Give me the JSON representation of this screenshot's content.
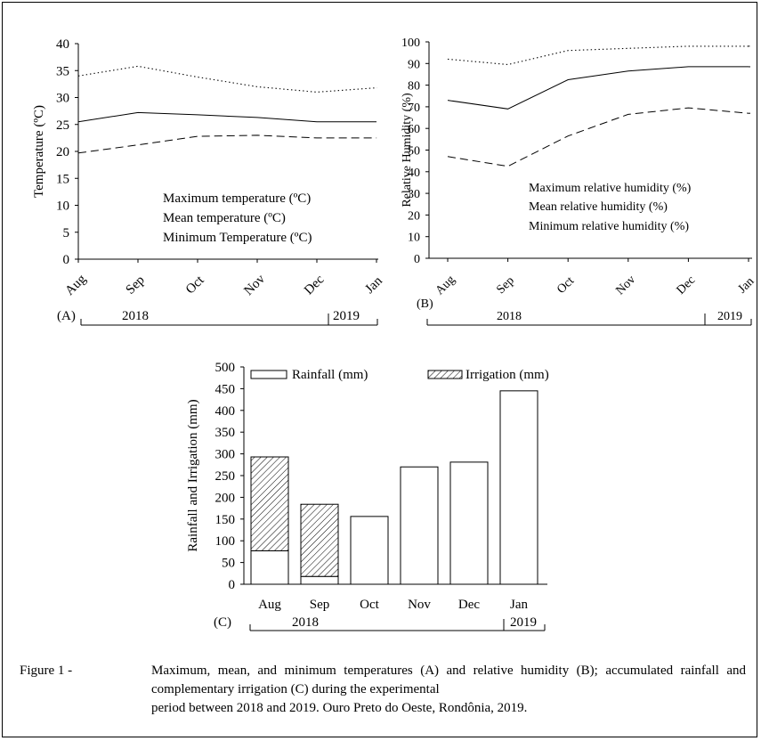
{
  "chart_data": [
    {
      "id": "A",
      "type": "line",
      "panel_label": "(A)",
      "ylabel": "Temperature (ºC)",
      "ylim": [
        0,
        40
      ],
      "yticks": [
        0,
        5,
        10,
        15,
        20,
        25,
        30,
        35,
        40
      ],
      "categories": [
        "Aug",
        "Sep",
        "Oct",
        "Nov",
        "Dec",
        "Jan"
      ],
      "years": [
        "2018",
        "2019"
      ],
      "series": [
        {
          "name": "Maximum temperature (ºC)",
          "style": "dotted",
          "values": [
            34,
            35.8,
            33.8,
            32,
            31,
            31.8
          ]
        },
        {
          "name": "Mean temperature (ºC)",
          "style": "solid",
          "values": [
            25.5,
            27.2,
            26.8,
            26.3,
            25.5,
            25.5
          ]
        },
        {
          "name": "Minimum Temperature (ºC)",
          "style": "dashed",
          "values": [
            19.7,
            21.2,
            22.8,
            23,
            22.5,
            22.5
          ]
        }
      ]
    },
    {
      "id": "B",
      "type": "line",
      "panel_label": "(B)",
      "ylabel": "Relative  Humidity (%)",
      "ylim": [
        0,
        100
      ],
      "yticks": [
        0,
        10,
        20,
        30,
        40,
        50,
        60,
        70,
        80,
        90,
        100
      ],
      "categories": [
        "Aug",
        "Sep",
        "Oct",
        "Nov",
        "Dec",
        "Jan"
      ],
      "years": [
        "2018",
        "2019"
      ],
      "series": [
        {
          "name": "Maximum relative humidity (%)",
          "style": "dotted",
          "values": [
            92,
            89.5,
            96,
            97,
            98,
            98
          ]
        },
        {
          "name": "Mean relative humidity (%)",
          "style": "solid",
          "values": [
            73,
            69,
            82.5,
            86.5,
            88.5,
            88.5
          ]
        },
        {
          "name": "Minimum relative humidity (%)",
          "style": "dashed",
          "values": [
            47,
            42.5,
            56.5,
            66.5,
            69.5,
            67
          ]
        }
      ]
    },
    {
      "id": "C",
      "type": "bar",
      "stacked": true,
      "panel_label": "(C)",
      "ylabel": "Rainfall and Irrigation (mm)",
      "ylim": [
        0,
        500
      ],
      "yticks": [
        0,
        50,
        100,
        150,
        200,
        250,
        300,
        350,
        400,
        450,
        500
      ],
      "categories": [
        "Aug",
        "Sep",
        "Oct",
        "Nov",
        "Dec",
        "Jan"
      ],
      "years": [
        "2018",
        "2019"
      ],
      "series": [
        {
          "name": "Rainfall (mm)",
          "pattern": "plain",
          "values": [
            77,
            18,
            156,
            270,
            281,
            445
          ]
        },
        {
          "name": "Irrigation (mm)",
          "pattern": "hatched",
          "values": [
            216,
            166,
            0,
            0,
            0,
            0
          ]
        }
      ]
    }
  ],
  "caption": {
    "lead": "Figure 1 -",
    "line1": "Maximum, mean, and minimum temperatures (A) and relative humidity (B);",
    "line2": "accumulated rainfall and complementary irrigation (C) during the experimental",
    "line3": "period between 2018 and 2019. Ouro Preto do Oeste, Rondônia, 2019."
  }
}
